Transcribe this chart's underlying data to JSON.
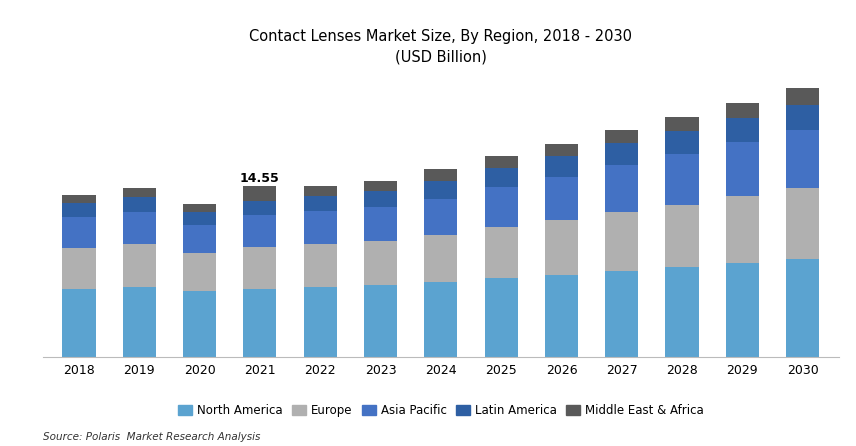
{
  "title_line1": "Contact Lenses Market Size, By Region, 2018 - 2030",
  "title_line2": "(USD Billion)",
  "years": [
    2018,
    2019,
    2020,
    2021,
    2022,
    2023,
    2024,
    2025,
    2026,
    2027,
    2028,
    2029,
    2030
  ],
  "regions": [
    "North America",
    "Europe",
    "Asia Pacific",
    "Latin America",
    "Middle East & Africa"
  ],
  "colors": [
    "#5ba3d0",
    "#b0b0b0",
    "#4472c4",
    "#2e5fa3",
    "#595959"
  ],
  "data": {
    "North America": [
      5.8,
      5.95,
      5.6,
      5.8,
      5.95,
      6.1,
      6.35,
      6.7,
      7.0,
      7.35,
      7.65,
      8.0,
      8.35
    ],
    "Europe": [
      3.5,
      3.65,
      3.3,
      3.6,
      3.7,
      3.8,
      4.05,
      4.35,
      4.65,
      5.0,
      5.3,
      5.7,
      6.1
    ],
    "Asia Pacific": [
      2.6,
      2.75,
      2.4,
      2.7,
      2.8,
      2.9,
      3.1,
      3.45,
      3.75,
      4.05,
      4.35,
      4.65,
      4.95
    ],
    "Latin America": [
      1.2,
      1.3,
      1.1,
      1.25,
      1.3,
      1.4,
      1.55,
      1.65,
      1.75,
      1.85,
      1.95,
      2.05,
      2.15
    ],
    "Middle East & Africa": [
      0.7,
      0.8,
      0.65,
      1.2,
      0.8,
      0.85,
      0.95,
      1.0,
      1.05,
      1.1,
      1.2,
      1.3,
      1.45
    ]
  },
  "annotation_year": 2021,
  "annotation_value": "14.55",
  "source": "Source: Polaris  Market Research Analysis",
  "background_color": "#ffffff",
  "bar_width": 0.55,
  "ylim": [
    0,
    24
  ],
  "legend_ncol": 5
}
